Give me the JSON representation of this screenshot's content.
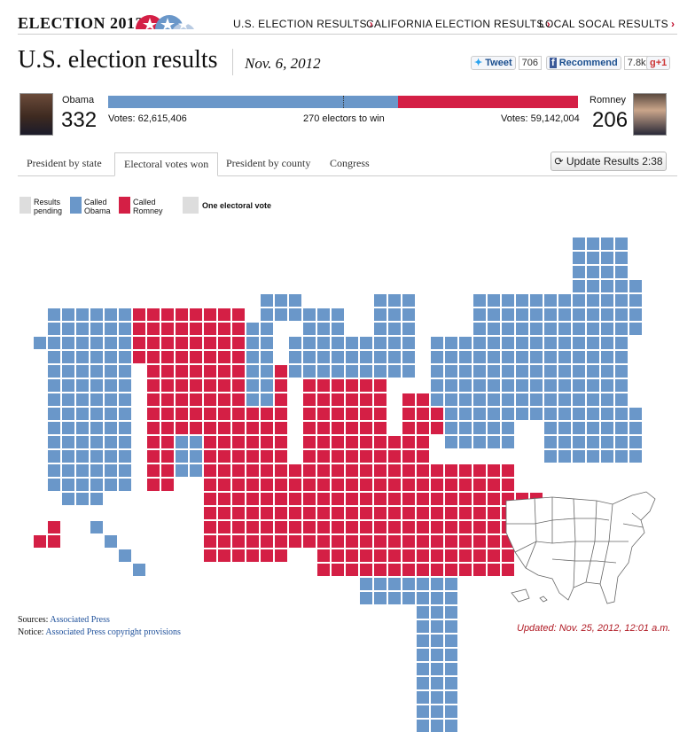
{
  "header": {
    "brand": "ELECTION 2012",
    "nav": [
      {
        "label": "U.S. ELECTION RESULTS"
      },
      {
        "label": "CALIFORNIA ELECTION RESULTS"
      },
      {
        "label": "LOCAL SOCAL RESULTS"
      }
    ]
  },
  "title": {
    "main": "U.S. election results",
    "date": "Nov. 6, 2012"
  },
  "social": {
    "tweet_label": "Tweet",
    "tweet_count": "706",
    "recommend_label": "Recommend",
    "recommend_count": "7.8k",
    "gplus_label": "+1"
  },
  "candidates": {
    "obama": {
      "name": "Obama",
      "electoral_votes": "332",
      "votes_text": "Votes: 62,615,406"
    },
    "romney": {
      "name": "Romney",
      "electoral_votes": "206",
      "votes_text": "Votes: 59,142,004"
    },
    "to_win": "270 electors to win",
    "share": {
      "obama": 332,
      "romney": 206,
      "total": 538
    }
  },
  "tabs": [
    {
      "label": "President by state"
    },
    {
      "label": "Electoral votes won",
      "active": true
    },
    {
      "label": "President by county"
    },
    {
      "label": "Congress"
    }
  ],
  "update_button": "Update Results 2:38",
  "legend": [
    {
      "label": "Results pending",
      "color": "#dddddd"
    },
    {
      "label": "Called Obama",
      "color": "#6a97c9"
    },
    {
      "label": "Called Romney",
      "color": "#d41f45"
    },
    {
      "label": "One electoral vote",
      "color": "#dddddd"
    }
  ],
  "colors": {
    "obama": "#6a97c9",
    "romney": "#d41f45",
    "pending": "#dddddd"
  },
  "footer": {
    "sources_label": "Sources:",
    "sources_link": "Associated Press",
    "notice_label": "Notice:",
    "notice_link": "Associated Press copyright provisions",
    "updated": "Updated: Nov. 25, 2012, 12:01 a.m."
  },
  "icons": {
    "refresh": "refresh-icon",
    "twitter": "twitter-icon",
    "facebook": "facebook-icon",
    "gplus": "gplus-icon",
    "chevron": "chevron-right-icon"
  }
}
